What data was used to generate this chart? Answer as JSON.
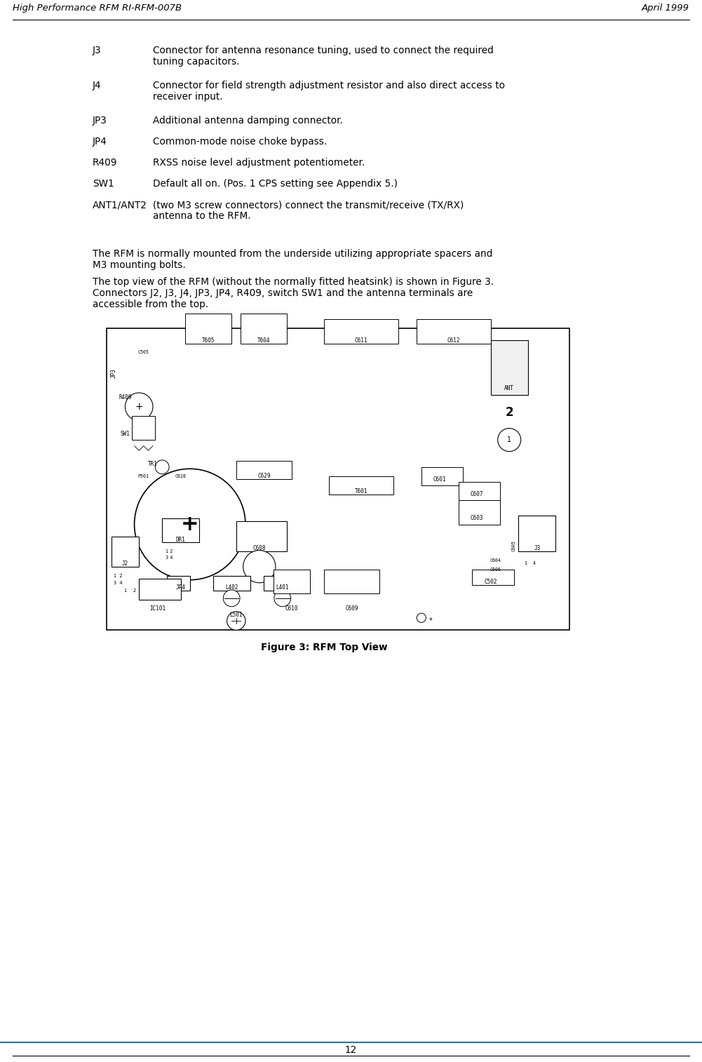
{
  "header_left": "High Performance RFM RI-RFM-007B",
  "header_right": "April 1999",
  "page_number": "12",
  "bg_color": "#ffffff",
  "text_color": "#000000",
  "header_font_size": 9.5,
  "body_font_size": 9.8,
  "items": [
    {
      "label": "J3",
      "text": "Connector for antenna resonance tuning, used to connect the required\ntuning capacitors.",
      "two_line": true
    },
    {
      "label": "J4",
      "text": "Connector for field strength adjustment resistor and also direct access to\nreceiver input.",
      "two_line": true
    },
    {
      "label": "JP3",
      "text": "Additional antenna damping connector.",
      "two_line": false
    },
    {
      "label": "JP4",
      "text": "Common-mode noise choke bypass.",
      "two_line": false
    },
    {
      "label": "R409",
      "text": "RXSS noise level adjustment potentiometer.",
      "two_line": false
    },
    {
      "label": "SW1",
      "text": "Default all on. (Pos. 1 CPS setting see Appendix 5.)",
      "two_line": false
    },
    {
      "label": "ANT1/ANT2",
      "text": "(two M3 screw connectors) connect the transmit/receive (TX/RX)\nantenna to the RFM.",
      "two_line": true
    }
  ],
  "para1": "The RFM is normally mounted from the underside utilizing appropriate spacers and\nM3 mounting bolts.",
  "para2": "The top view of the RFM (without the normally fitted heatsink) is shown in Figure 3.\nConnectors J2, J3, J4, JP3, JP4, R409, switch SW1 and the antenna terminals are\naccessible from the top.",
  "figure_caption": "Figure 3: RFM Top View",
  "figure_caption_bold": true
}
